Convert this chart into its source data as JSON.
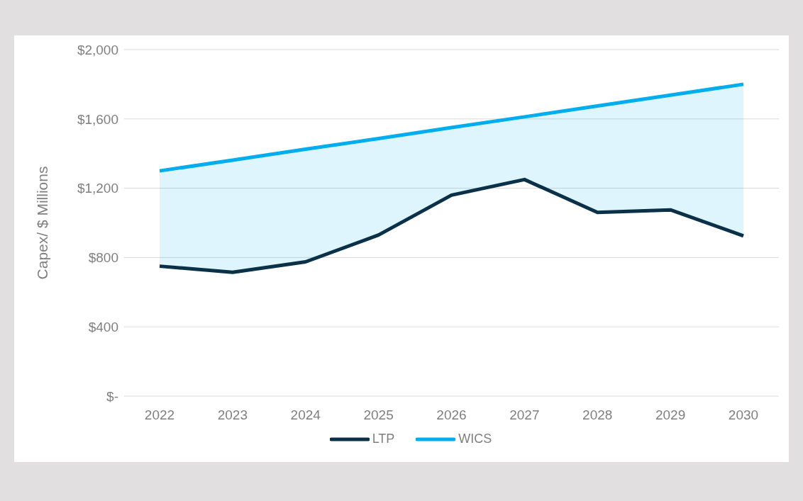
{
  "chart_data": {
    "type": "line",
    "ylabel": "Capex/ $ Millions",
    "categories": [
      "2022",
      "2023",
      "2024",
      "2025",
      "2026",
      "2027",
      "2028",
      "2029",
      "2030"
    ],
    "series": [
      {
        "name": "LTP",
        "color": "#0b3149",
        "values": [
          750,
          715,
          775,
          930,
          1160,
          1250,
          1060,
          1075,
          925
        ]
      },
      {
        "name": "WICS",
        "color": "#00aeef",
        "values": [
          1300,
          1362,
          1425,
          1487,
          1550,
          1612,
          1675,
          1737,
          1800
        ],
        "lower": [
          750,
          715,
          775,
          930,
          1160,
          1250,
          1060,
          1075,
          925
        ],
        "upper": [
          1300,
          1362,
          1425,
          1487,
          1550,
          1612,
          1675,
          1737,
          1800
        ]
      }
    ],
    "ylim": [
      0,
      2000
    ],
    "yticks": [
      {
        "value": 0,
        "label": "$-"
      },
      {
        "value": 400,
        "label": "$400"
      },
      {
        "value": 800,
        "label": "$800"
      },
      {
        "value": 1200,
        "label": "$1,200"
      },
      {
        "value": 1600,
        "label": "$1,600"
      },
      {
        "value": 2000,
        "label": "$2,000"
      }
    ],
    "grid": "y",
    "legend": "bottom",
    "marker": "none",
    "line_style": "solid"
  }
}
